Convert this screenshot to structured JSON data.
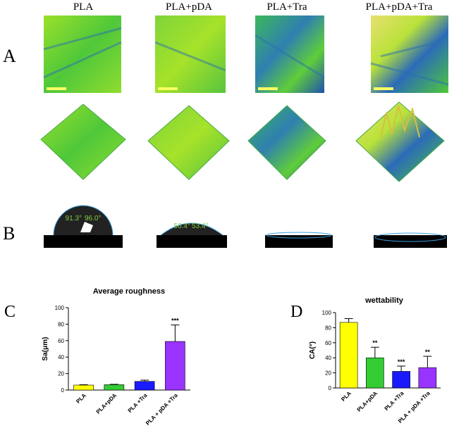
{
  "panel_labels": [
    "A",
    "B",
    "C",
    "D"
  ],
  "columns": [
    "PLA",
    "PLA+pDA",
    "PLA+Tra",
    "PLA+pDA+Tra"
  ],
  "contact_angles": [
    [
      "91.3°",
      "96.0°"
    ],
    [
      "56.4°",
      "53.4°"
    ]
  ],
  "chart_data": [
    {
      "type": "bar",
      "title": "Average roughness",
      "y_label": "Sa(μm)",
      "categories": [
        "PLA",
        "PLA+pDA",
        "PLA +Tra",
        "PLA + pDA +Tra"
      ],
      "values": [
        6,
        6.5,
        10.5,
        59
      ],
      "errors": [
        0.5,
        0.5,
        1.5,
        20
      ],
      "significance": [
        null,
        null,
        null,
        "***"
      ],
      "colors": [
        "#ffff00",
        "#33cc33",
        "#1a1aff",
        "#9933ff"
      ],
      "ylim": [
        0,
        100
      ],
      "yticks": [
        0,
        20,
        40,
        60,
        80,
        100
      ]
    },
    {
      "type": "bar",
      "title": "wettability",
      "y_label": "CA(°)",
      "categories": [
        "PLA",
        "PLA+pDA",
        "PLA +Tra",
        "PLA + pDA +Tra"
      ],
      "values": [
        87,
        40,
        22,
        27
      ],
      "errors": [
        5,
        14,
        7,
        15
      ],
      "significance": [
        null,
        "**",
        "***",
        "**"
      ],
      "colors": [
        "#ffff00",
        "#33cc33",
        "#1a1aff",
        "#9933ff"
      ],
      "ylim": [
        0,
        100
      ],
      "yticks": [
        0,
        20,
        40,
        60,
        80,
        100
      ]
    }
  ]
}
